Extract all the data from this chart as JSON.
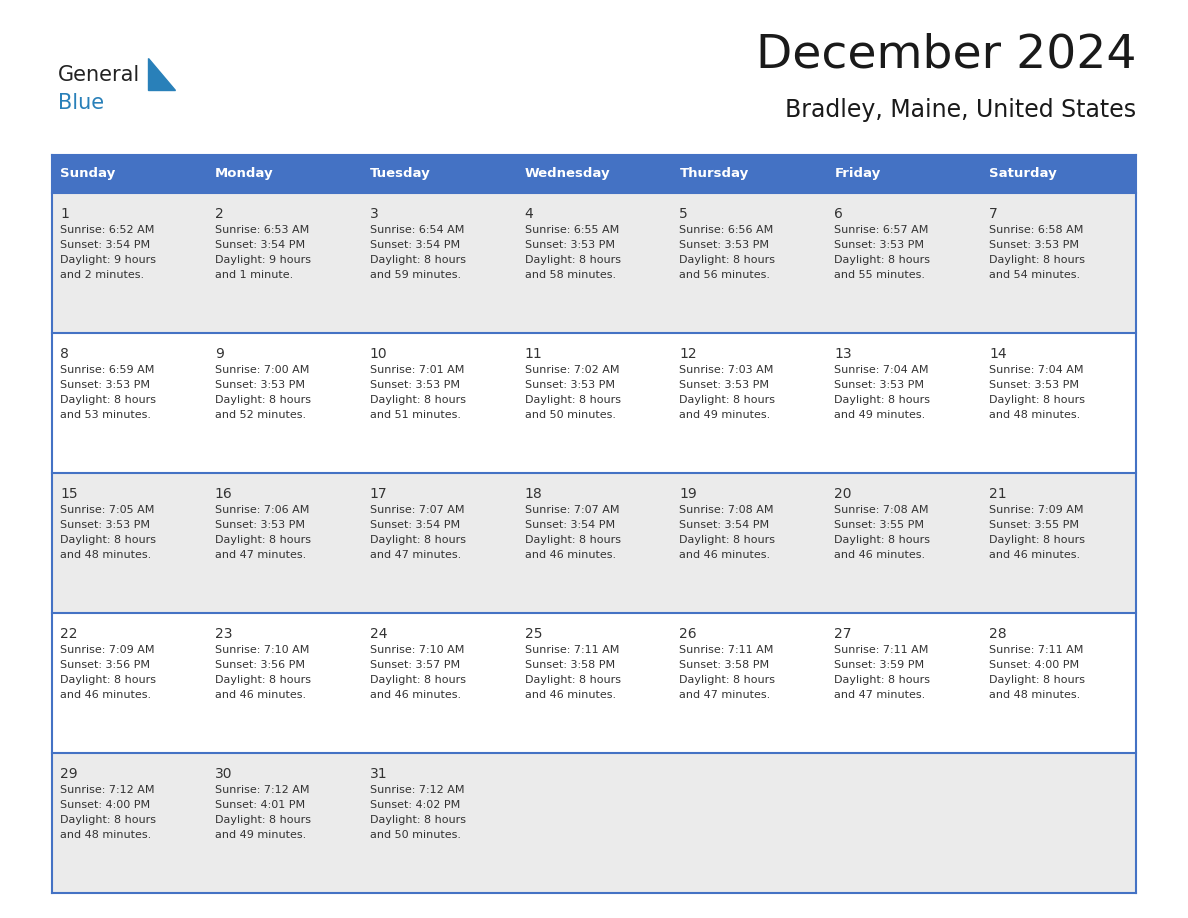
{
  "title": "December 2024",
  "subtitle": "Bradley, Maine, United States",
  "header_bg_color": "#4472C4",
  "header_text_color": "#FFFFFF",
  "day_names": [
    "Sunday",
    "Monday",
    "Tuesday",
    "Wednesday",
    "Thursday",
    "Friday",
    "Saturday"
  ],
  "title_fontsize": 34,
  "subtitle_fontsize": 17,
  "cell_bg_row0": "#EBEBEB",
  "cell_bg_row1": "#FFFFFF",
  "cell_bg_row2": "#EBEBEB",
  "cell_bg_row3": "#FFFFFF",
  "cell_bg_row4": "#EBEBEB",
  "border_color": "#4472C4",
  "text_color": "#333333",
  "logo_color1": "#222222",
  "logo_color2": "#2980B9",
  "logo_triangle_color": "#2980B9",
  "days": [
    {
      "day": 1,
      "col": 0,
      "row": 0,
      "sunrise": "6:52 AM",
      "sunset": "3:54 PM",
      "daylight_h": "9 hours",
      "daylight_m": "and 2 minutes."
    },
    {
      "day": 2,
      "col": 1,
      "row": 0,
      "sunrise": "6:53 AM",
      "sunset": "3:54 PM",
      "daylight_h": "9 hours",
      "daylight_m": "and 1 minute."
    },
    {
      "day": 3,
      "col": 2,
      "row": 0,
      "sunrise": "6:54 AM",
      "sunset": "3:54 PM",
      "daylight_h": "8 hours",
      "daylight_m": "and 59 minutes."
    },
    {
      "day": 4,
      "col": 3,
      "row": 0,
      "sunrise": "6:55 AM",
      "sunset": "3:53 PM",
      "daylight_h": "8 hours",
      "daylight_m": "and 58 minutes."
    },
    {
      "day": 5,
      "col": 4,
      "row": 0,
      "sunrise": "6:56 AM",
      "sunset": "3:53 PM",
      "daylight_h": "8 hours",
      "daylight_m": "and 56 minutes."
    },
    {
      "day": 6,
      "col": 5,
      "row": 0,
      "sunrise": "6:57 AM",
      "sunset": "3:53 PM",
      "daylight_h": "8 hours",
      "daylight_m": "and 55 minutes."
    },
    {
      "day": 7,
      "col": 6,
      "row": 0,
      "sunrise": "6:58 AM",
      "sunset": "3:53 PM",
      "daylight_h": "8 hours",
      "daylight_m": "and 54 minutes."
    },
    {
      "day": 8,
      "col": 0,
      "row": 1,
      "sunrise": "6:59 AM",
      "sunset": "3:53 PM",
      "daylight_h": "8 hours",
      "daylight_m": "and 53 minutes."
    },
    {
      "day": 9,
      "col": 1,
      "row": 1,
      "sunrise": "7:00 AM",
      "sunset": "3:53 PM",
      "daylight_h": "8 hours",
      "daylight_m": "and 52 minutes."
    },
    {
      "day": 10,
      "col": 2,
      "row": 1,
      "sunrise": "7:01 AM",
      "sunset": "3:53 PM",
      "daylight_h": "8 hours",
      "daylight_m": "and 51 minutes."
    },
    {
      "day": 11,
      "col": 3,
      "row": 1,
      "sunrise": "7:02 AM",
      "sunset": "3:53 PM",
      "daylight_h": "8 hours",
      "daylight_m": "and 50 minutes."
    },
    {
      "day": 12,
      "col": 4,
      "row": 1,
      "sunrise": "7:03 AM",
      "sunset": "3:53 PM",
      "daylight_h": "8 hours",
      "daylight_m": "and 49 minutes."
    },
    {
      "day": 13,
      "col": 5,
      "row": 1,
      "sunrise": "7:04 AM",
      "sunset": "3:53 PM",
      "daylight_h": "8 hours",
      "daylight_m": "and 49 minutes."
    },
    {
      "day": 14,
      "col": 6,
      "row": 1,
      "sunrise": "7:04 AM",
      "sunset": "3:53 PM",
      "daylight_h": "8 hours",
      "daylight_m": "and 48 minutes."
    },
    {
      "day": 15,
      "col": 0,
      "row": 2,
      "sunrise": "7:05 AM",
      "sunset": "3:53 PM",
      "daylight_h": "8 hours",
      "daylight_m": "and 48 minutes."
    },
    {
      "day": 16,
      "col": 1,
      "row": 2,
      "sunrise": "7:06 AM",
      "sunset": "3:53 PM",
      "daylight_h": "8 hours",
      "daylight_m": "and 47 minutes."
    },
    {
      "day": 17,
      "col": 2,
      "row": 2,
      "sunrise": "7:07 AM",
      "sunset": "3:54 PM",
      "daylight_h": "8 hours",
      "daylight_m": "and 47 minutes."
    },
    {
      "day": 18,
      "col": 3,
      "row": 2,
      "sunrise": "7:07 AM",
      "sunset": "3:54 PM",
      "daylight_h": "8 hours",
      "daylight_m": "and 46 minutes."
    },
    {
      "day": 19,
      "col": 4,
      "row": 2,
      "sunrise": "7:08 AM",
      "sunset": "3:54 PM",
      "daylight_h": "8 hours",
      "daylight_m": "and 46 minutes."
    },
    {
      "day": 20,
      "col": 5,
      "row": 2,
      "sunrise": "7:08 AM",
      "sunset": "3:55 PM",
      "daylight_h": "8 hours",
      "daylight_m": "and 46 minutes."
    },
    {
      "day": 21,
      "col": 6,
      "row": 2,
      "sunrise": "7:09 AM",
      "sunset": "3:55 PM",
      "daylight_h": "8 hours",
      "daylight_m": "and 46 minutes."
    },
    {
      "day": 22,
      "col": 0,
      "row": 3,
      "sunrise": "7:09 AM",
      "sunset": "3:56 PM",
      "daylight_h": "8 hours",
      "daylight_m": "and 46 minutes."
    },
    {
      "day": 23,
      "col": 1,
      "row": 3,
      "sunrise": "7:10 AM",
      "sunset": "3:56 PM",
      "daylight_h": "8 hours",
      "daylight_m": "and 46 minutes."
    },
    {
      "day": 24,
      "col": 2,
      "row": 3,
      "sunrise": "7:10 AM",
      "sunset": "3:57 PM",
      "daylight_h": "8 hours",
      "daylight_m": "and 46 minutes."
    },
    {
      "day": 25,
      "col": 3,
      "row": 3,
      "sunrise": "7:11 AM",
      "sunset": "3:58 PM",
      "daylight_h": "8 hours",
      "daylight_m": "and 46 minutes."
    },
    {
      "day": 26,
      "col": 4,
      "row": 3,
      "sunrise": "7:11 AM",
      "sunset": "3:58 PM",
      "daylight_h": "8 hours",
      "daylight_m": "and 47 minutes."
    },
    {
      "day": 27,
      "col": 5,
      "row": 3,
      "sunrise": "7:11 AM",
      "sunset": "3:59 PM",
      "daylight_h": "8 hours",
      "daylight_m": "and 47 minutes."
    },
    {
      "day": 28,
      "col": 6,
      "row": 3,
      "sunrise": "7:11 AM",
      "sunset": "4:00 PM",
      "daylight_h": "8 hours",
      "daylight_m": "and 48 minutes."
    },
    {
      "day": 29,
      "col": 0,
      "row": 4,
      "sunrise": "7:12 AM",
      "sunset": "4:00 PM",
      "daylight_h": "8 hours",
      "daylight_m": "and 48 minutes."
    },
    {
      "day": 30,
      "col": 1,
      "row": 4,
      "sunrise": "7:12 AM",
      "sunset": "4:01 PM",
      "daylight_h": "8 hours",
      "daylight_m": "and 49 minutes."
    },
    {
      "day": 31,
      "col": 2,
      "row": 4,
      "sunrise": "7:12 AM",
      "sunset": "4:02 PM",
      "daylight_h": "8 hours",
      "daylight_m": "and 50 minutes."
    }
  ]
}
